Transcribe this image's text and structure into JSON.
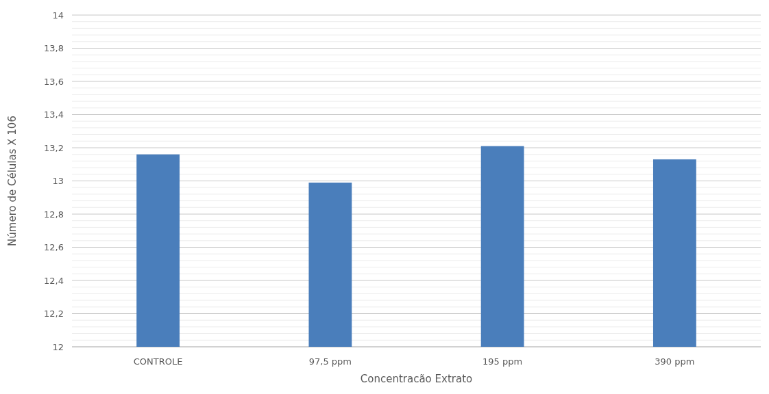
{
  "chart_data": {
    "type": "bar",
    "xlabel": "Concentracão Extrato",
    "ylabel": "Número de Células X 106",
    "categories": [
      "CONTROLE",
      "97,5 ppm",
      "195 ppm",
      "390 ppm"
    ],
    "values": [
      13.16,
      12.99,
      13.21,
      13.13
    ],
    "color": "#4a7ebb",
    "ylim": [
      12,
      14
    ],
    "yticks": [
      12,
      {
        "value": 12.04,
        "label": null
      },
      {
        "value": 12.08,
        "label": null
      },
      {
        "value": 12.12,
        "label": null
      },
      {
        "value": 12.16,
        "label": null
      },
      {
        "value": 12.2,
        "label": "12,2"
      },
      {
        "value": 12.24,
        "label": null
      },
      {
        "value": 12.28,
        "label": null
      },
      {
        "value": 12.32,
        "label": null
      },
      {
        "value": 12.36,
        "label": null
      },
      {
        "value": 12.4,
        "label": "12,4"
      },
      {
        "value": 12.44,
        "label": null
      },
      {
        "value": 12.48,
        "label": null
      },
      {
        "value": 12.52,
        "label": null
      },
      {
        "value": 12.56,
        "label": null
      },
      {
        "value": 12.6,
        "label": "12,6"
      },
      {
        "value": 12.64,
        "label": null
      },
      {
        "value": 12.68,
        "label": null
      },
      {
        "value": 12.72,
        "label": null
      },
      {
        "value": 12.76,
        "label": null
      },
      {
        "value": 12.8,
        "label": "12,8"
      },
      {
        "value": 12.84,
        "label": null
      },
      {
        "value": 12.88,
        "label": null
      },
      {
        "value": 12.92,
        "label": null
      },
      {
        "value": 12.96,
        "label": null
      },
      13,
      {
        "value": 13.04,
        "label": null
      },
      {
        "value": 13.08,
        "label": null
      },
      {
        "value": 13.12,
        "label": null
      },
      {
        "value": 13.16,
        "label": null
      },
      {
        "value": 13.2,
        "label": "13,2"
      },
      {
        "value": 13.24,
        "label": null
      },
      {
        "value": 13.28,
        "label": null
      },
      {
        "value": 13.32,
        "label": null
      },
      {
        "value": 13.36,
        "label": null
      },
      {
        "value": 13.4,
        "label": "13,4"
      },
      {
        "value": 13.44,
        "label": null
      },
      {
        "value": 13.48,
        "label": null
      },
      {
        "value": 13.52,
        "label": null
      },
      {
        "value": 13.56,
        "label": null
      },
      {
        "value": 13.6,
        "label": "13,6"
      },
      {
        "value": 13.64,
        "label": null
      },
      {
        "value": 13.68,
        "label": null
      },
      {
        "value": 13.72,
        "label": null
      },
      {
        "value": 13.76,
        "label": null
      },
      {
        "value": 13.8,
        "label": "13,8"
      },
      {
        "value": 13.84,
        "label": null
      },
      {
        "value": 13.88,
        "label": null
      },
      {
        "value": 13.92,
        "label": null
      },
      {
        "value": 13.96,
        "label": null
      },
      14
    ],
    "grid": "y"
  }
}
